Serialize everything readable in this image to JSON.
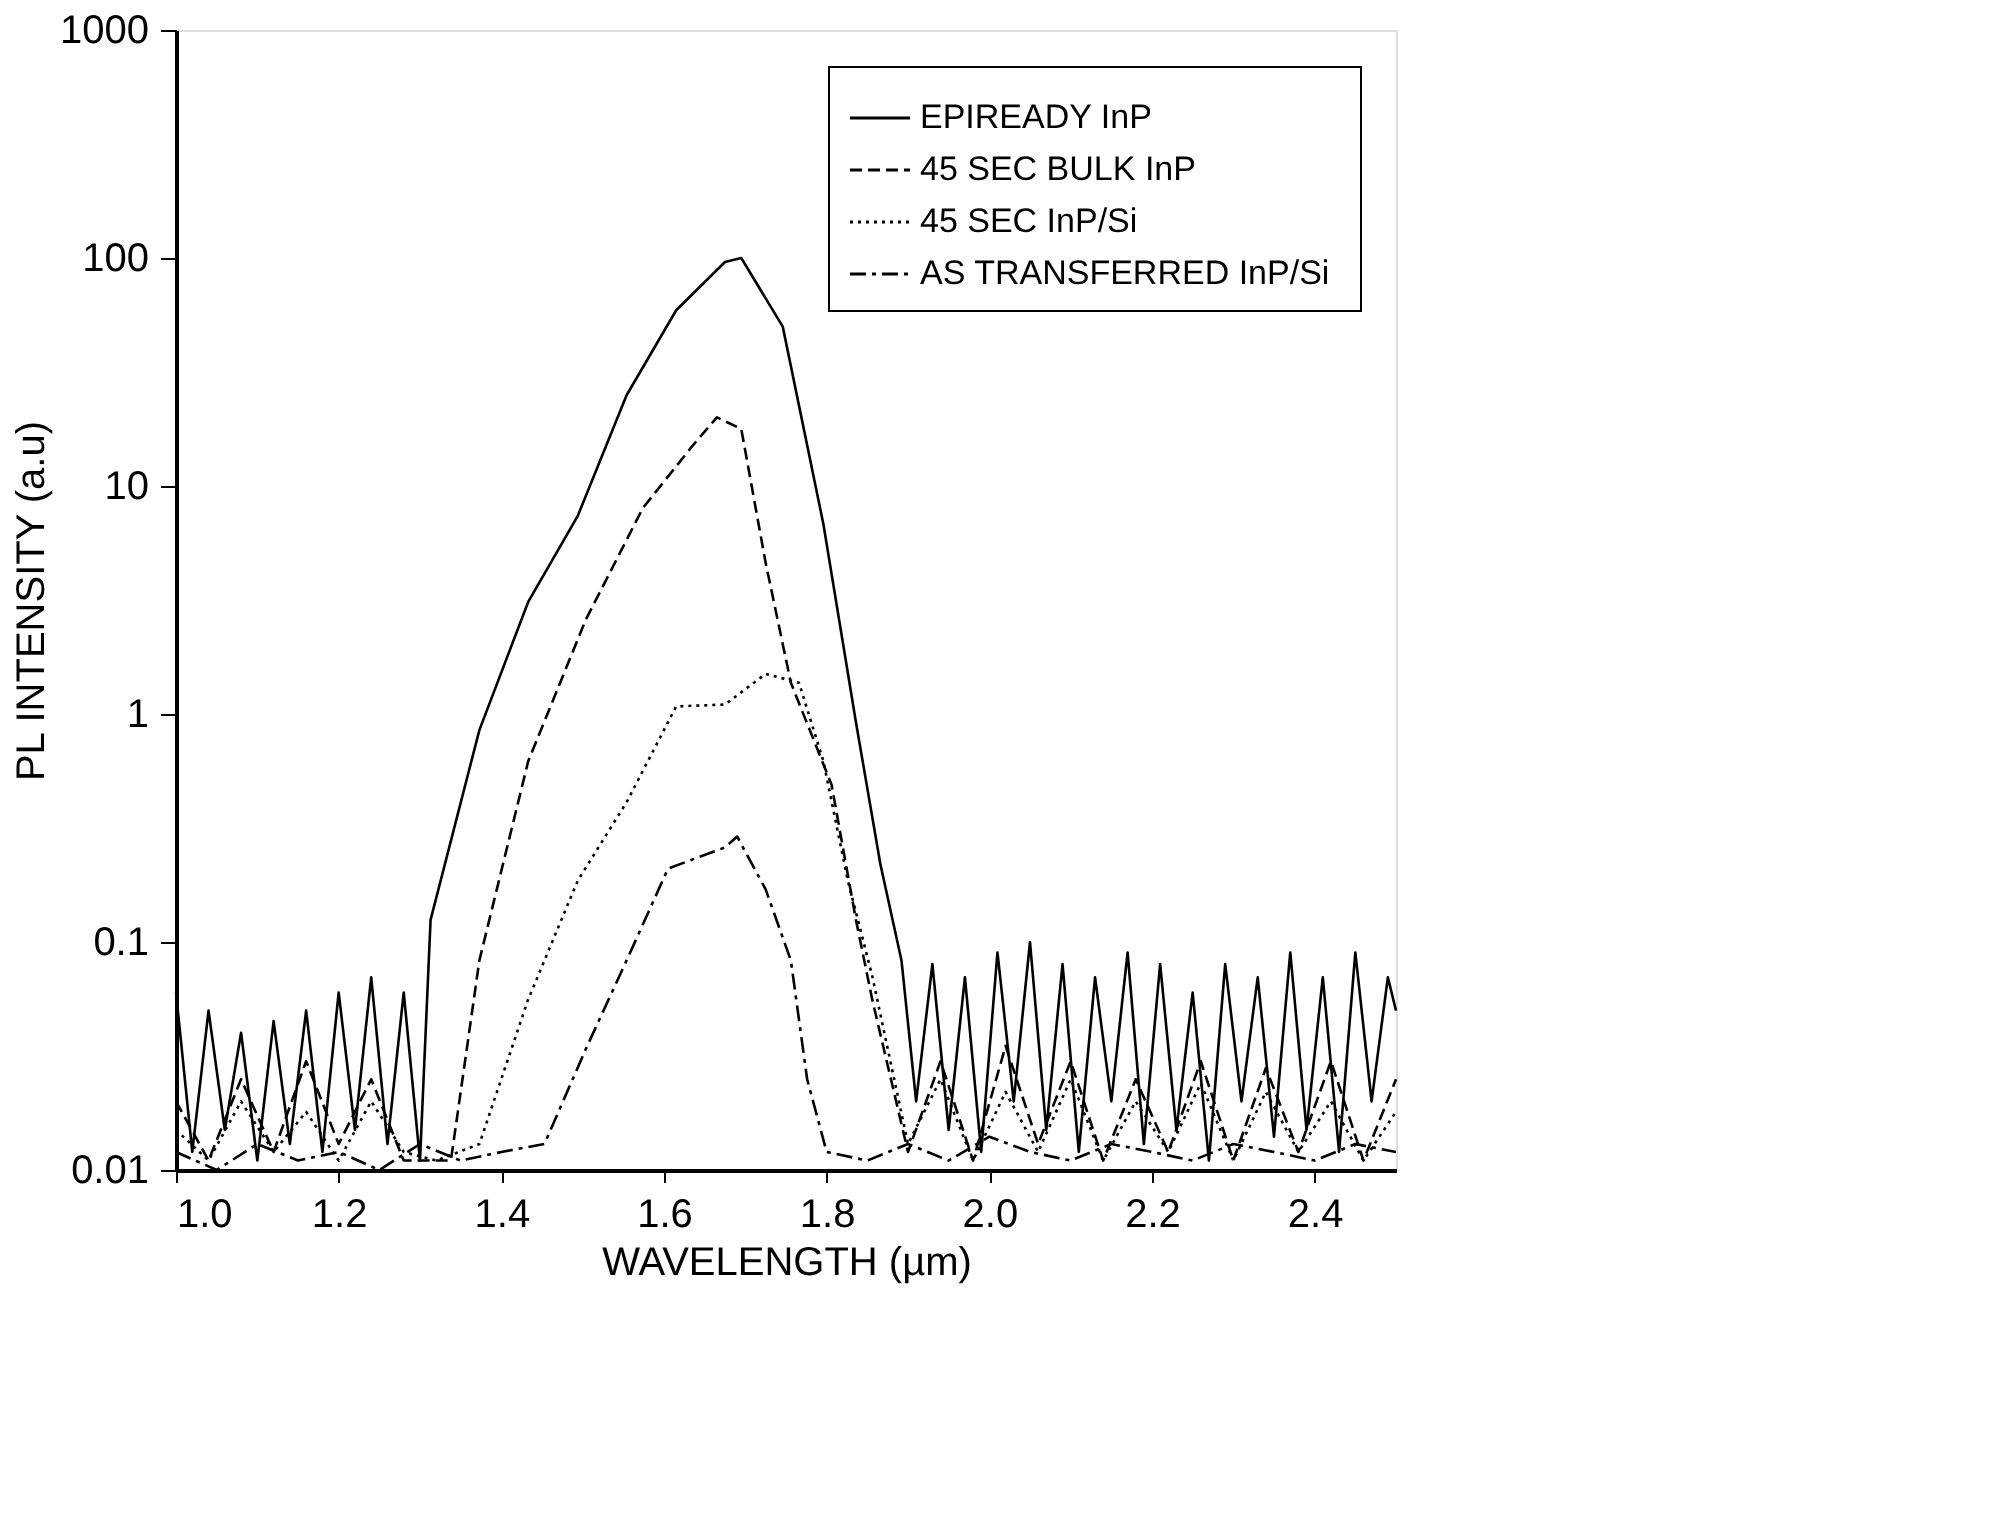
{
  "chart_data": {
    "type": "line",
    "xlabel": "WAVELENGTH (µm)",
    "ylabel": "PL INTENSITY (a.u)",
    "log": "y",
    "xlim": [
      1.0,
      2.5
    ],
    "ylim": [
      0.01,
      1000
    ],
    "xticks": [
      {
        "value": 1.0,
        "label": "1.0"
      },
      {
        "value": 1.2,
        "label": "1.2"
      },
      {
        "value": 1.4,
        "label": "1.4"
      },
      {
        "value": 1.6,
        "label": "1.6"
      },
      {
        "value": 1.8,
        "label": "1.8"
      },
      {
        "value": 2.0,
        "label": "2.0"
      },
      {
        "value": 2.2,
        "label": "2.2"
      },
      {
        "value": 2.4,
        "label": "2.4"
      }
    ],
    "yticks": [
      0.01,
      0.1,
      1,
      10,
      100,
      1000
    ],
    "grid": false,
    "legend": "top right",
    "marker": "none",
    "series": [
      {
        "name": "EPIREADY InP",
        "color": "#000000",
        "line_style": "solid",
        "x": [
          1.0,
          1.02,
          1.04,
          1.06,
          1.08,
          1.1,
          1.12,
          1.14,
          1.16,
          1.18,
          1.2,
          1.22,
          1.24,
          1.26,
          1.28,
          1.3,
          1.313,
          1.373,
          1.433,
          1.494,
          1.554,
          1.615,
          1.675,
          1.695,
          1.746,
          1.796,
          1.836,
          1.866,
          1.892,
          1.91,
          1.93,
          1.95,
          1.97,
          1.99,
          2.01,
          2.03,
          2.05,
          2.07,
          2.09,
          2.11,
          2.13,
          2.15,
          2.17,
          2.19,
          2.21,
          2.23,
          2.25,
          2.27,
          2.29,
          2.31,
          2.33,
          2.35,
          2.37,
          2.39,
          2.41,
          2.43,
          2.45,
          2.47,
          2.49,
          2.5
        ],
        "values": [
          0.06,
          0.012,
          0.05,
          0.015,
          0.04,
          0.011,
          0.045,
          0.013,
          0.05,
          0.012,
          0.06,
          0.015,
          0.07,
          0.013,
          0.06,
          0.011,
          0.125,
          0.85,
          3.1,
          7.4,
          25,
          59,
          96,
          100,
          50,
          6.8,
          0.92,
          0.22,
          0.083,
          0.02,
          0.08,
          0.015,
          0.07,
          0.012,
          0.09,
          0.02,
          0.1,
          0.015,
          0.08,
          0.012,
          0.07,
          0.02,
          0.09,
          0.013,
          0.08,
          0.015,
          0.06,
          0.011,
          0.08,
          0.02,
          0.07,
          0.014,
          0.09,
          0.015,
          0.07,
          0.012,
          0.09,
          0.02,
          0.07,
          0.05
        ]
      },
      {
        "name": "45 SEC BULK InP",
        "color": "#000000",
        "line_style": "dashed",
        "x": [
          1.0,
          1.04,
          1.08,
          1.12,
          1.16,
          1.2,
          1.24,
          1.28,
          1.338,
          1.373,
          1.433,
          1.504,
          1.574,
          1.635,
          1.665,
          1.695,
          1.725,
          1.756,
          1.806,
          1.836,
          1.856,
          1.9,
          1.94,
          1.98,
          2.02,
          2.06,
          2.1,
          2.14,
          2.18,
          2.22,
          2.26,
          2.3,
          2.34,
          2.38,
          2.42,
          2.46,
          2.5
        ],
        "values": [
          0.02,
          0.011,
          0.025,
          0.012,
          0.03,
          0.013,
          0.025,
          0.011,
          0.011,
          0.083,
          0.62,
          2.6,
          8,
          15,
          20,
          17.8,
          4.6,
          1.37,
          0.49,
          0.125,
          0.056,
          0.012,
          0.03,
          0.011,
          0.035,
          0.013,
          0.03,
          0.011,
          0.025,
          0.012,
          0.03,
          0.011,
          0.028,
          0.012,
          0.03,
          0.011,
          0.025
        ]
      },
      {
        "name": "45 SEC InP/Si",
        "color": "#000000",
        "line_style": "dotted",
        "x": [
          1.0,
          1.04,
          1.08,
          1.12,
          1.16,
          1.2,
          1.24,
          1.28,
          1.32,
          1.373,
          1.433,
          1.494,
          1.554,
          1.615,
          1.675,
          1.725,
          1.766,
          1.796,
          1.826,
          1.856,
          1.9,
          1.94,
          1.98,
          2.02,
          2.06,
          2.1,
          2.14,
          2.18,
          2.22,
          2.26,
          2.3,
          2.34,
          2.38,
          2.42,
          2.46,
          2.5
        ],
        "values": [
          0.015,
          0.011,
          0.02,
          0.012,
          0.018,
          0.011,
          0.02,
          0.012,
          0.011,
          0.013,
          0.056,
          0.186,
          0.41,
          1.08,
          1.1,
          1.5,
          1.37,
          0.62,
          0.186,
          0.071,
          0.013,
          0.025,
          0.011,
          0.022,
          0.012,
          0.025,
          0.011,
          0.02,
          0.012,
          0.024,
          0.011,
          0.022,
          0.012,
          0.02,
          0.011,
          0.018
        ]
      },
      {
        "name": "AS TRANSFERRED  InP/Si",
        "color": "#000000",
        "line_style": "dashdot",
        "x": [
          1.0,
          1.05,
          1.1,
          1.15,
          1.2,
          1.25,
          1.3,
          1.35,
          1.4,
          1.453,
          1.504,
          1.554,
          1.605,
          1.675,
          1.69,
          1.725,
          1.756,
          1.776,
          1.8,
          1.85,
          1.9,
          1.95,
          2.0,
          2.05,
          2.1,
          2.15,
          2.2,
          2.25,
          2.3,
          2.35,
          2.4,
          2.45,
          2.5
        ],
        "values": [
          0.012,
          0.01,
          0.013,
          0.011,
          0.012,
          0.01,
          0.013,
          0.011,
          0.012,
          0.013,
          0.034,
          0.083,
          0.21,
          0.26,
          0.29,
          0.17,
          0.083,
          0.025,
          0.012,
          0.011,
          0.013,
          0.011,
          0.014,
          0.012,
          0.011,
          0.013,
          0.012,
          0.011,
          0.013,
          0.012,
          0.011,
          0.013,
          0.012
        ]
      }
    ]
  }
}
